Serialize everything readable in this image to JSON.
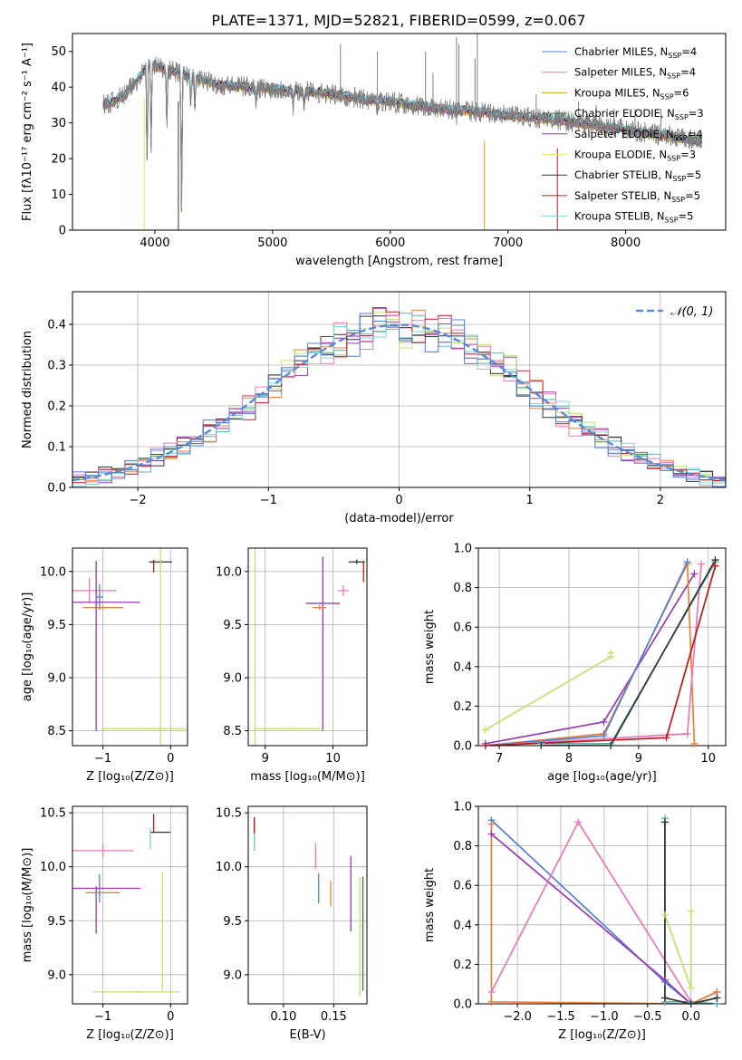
{
  "figure": {
    "title": "PLATE=1371, MJD=52821, FIBERID=0599, z=0.067"
  },
  "colors": {
    "chabrier_miles": "#4f7fd6",
    "salpeter_miles": "#e879b8",
    "kroupa_miles": "#d4a21a",
    "chabrier_elodie": "#3f6e3f",
    "salpeter_elodie": "#8a2bb8",
    "kroupa_elodie": "#e8e86a",
    "chabrier_stelib": "#333333",
    "salpeter_stelib": "#c01818",
    "kroupa_stelib": "#7dd3df",
    "obs": "#808080",
    "normal": "#5a8ad8",
    "orange": "#e9813a",
    "lime": "#bde36e",
    "purple": "#9a3ab0",
    "teal": "#59b0b5"
  },
  "chart_data": [
    {
      "id": "spectrum",
      "type": "line",
      "title": "PLATE=1371, MJD=52821, FIBERID=0599, z=0.067",
      "xlabel": "wavelength [Angstrom, rest frame]",
      "ylabel": "Flux [fλ10⁻¹⁷ erg cm⁻² s⁻¹ A⁻¹]",
      "xlim": [
        3300,
        8850
      ],
      "ylim": [
        0,
        55
      ],
      "xticks": [
        4000,
        5000,
        6000,
        7000,
        8000
      ],
      "yticks": [
        0,
        10,
        20,
        30,
        40,
        50
      ],
      "legend_position": "top-right",
      "legend": [
        {
          "label": "Chabrier MILES, N",
          "sub": "SSP",
          "tail": "=4",
          "color": "chabrier_miles"
        },
        {
          "label": "Salpeter MILES, N",
          "sub": "SSP",
          "tail": "=4",
          "color": "salpeter_miles"
        },
        {
          "label": "Kroupa MILES, N",
          "sub": "SSP",
          "tail": "=6",
          "color": "kroupa_miles"
        },
        {
          "label": "Chabrier ELODIE, N",
          "sub": "SSP",
          "tail": "=3",
          "color": "chabrier_elodie"
        },
        {
          "label": "Salpeter ELODIE, N",
          "sub": "SSP",
          "tail": "=4",
          "color": "salpeter_elodie"
        },
        {
          "label": "Kroupa ELODIE, N",
          "sub": "SSP",
          "tail": "=3",
          "color": "kroupa_elodie"
        },
        {
          "label": "Chabrier STELIB, N",
          "sub": "SSP",
          "tail": "=5",
          "color": "chabrier_stelib"
        },
        {
          "label": "Salpeter STELIB, N",
          "sub": "SSP",
          "tail": "=5",
          "color": "salpeter_stelib"
        },
        {
          "label": "Kroupa STELIB, N",
          "sub": "SSP",
          "tail": "=5",
          "color": "kroupa_stelib"
        }
      ],
      "continuum_x": [
        3560,
        3650,
        3750,
        3850,
        3950,
        4000,
        4100,
        4200,
        4300,
        4400,
        4500,
        4600,
        4800,
        5000,
        5200,
        5400,
        5600,
        5800,
        6000,
        6200,
        6400,
        6600,
        6800,
        7000,
        7200,
        7400,
        7600,
        7800,
        8000,
        8200,
        8400,
        8600
      ],
      "continuum_y": [
        35,
        36,
        38,
        42,
        47,
        46,
        45,
        44,
        43,
        42,
        41,
        40.5,
        40,
        39.5,
        39,
        38.5,
        37.5,
        36.5,
        36,
        35,
        34,
        33.5,
        33,
        32,
        31.5,
        31,
        30,
        29,
        28,
        27,
        26,
        25
      ],
      "absorption_lines": [
        [
          3934,
          18
        ],
        [
          3968,
          22
        ],
        [
          4102,
          30
        ],
        [
          4227,
          5
        ],
        [
          4305,
          36
        ],
        [
          4340,
          34
        ],
        [
          4861,
          36
        ],
        [
          5175,
          34
        ],
        [
          5269,
          35
        ],
        [
          5890,
          33
        ],
        [
          6563,
          32
        ]
      ],
      "emission_spikes": [
        [
          5577,
          52
        ],
        [
          5890,
          50
        ],
        [
          6300,
          50
        ],
        [
          6363,
          44
        ],
        [
          6563,
          54
        ],
        [
          6583,
          52
        ],
        [
          6720,
          48
        ],
        [
          6740,
          55
        ],
        [
          7240,
          38
        ],
        [
          7600,
          36
        ],
        [
          7750,
          35
        ],
        [
          7900,
          34
        ],
        [
          8080,
          34
        ],
        [
          8300,
          34
        ]
      ]
    },
    {
      "id": "residuals",
      "type": "line",
      "xlabel": "(data-model)/error",
      "ylabel": "Normed distribution",
      "xlim": [
        -2.5,
        2.5
      ],
      "ylim": [
        0,
        0.48
      ],
      "xticks": [
        -2,
        -1,
        0,
        1,
        2
      ],
      "yticks": [
        0.0,
        0.1,
        0.2,
        0.3,
        0.4
      ],
      "grid": true,
      "legend_position": "top-right",
      "legend": [
        {
          "label": "𝒩(0, 1)",
          "color": "normal",
          "style": "dashed"
        }
      ],
      "bin_width": 0.1,
      "series_colors": [
        "orange",
        "purple",
        "lime",
        "teal",
        "salpeter_stelib",
        "chabrier_stelib",
        "salpeter_miles",
        "kroupa_stelib",
        "chabrier_miles"
      ]
    },
    {
      "id": "age_vs_z",
      "type": "scatter",
      "xlabel": "Z [log₁₀(Z/Z⊙)]",
      "ylabel": "age  [log₁₀(age/yr)]",
      "xlim": [
        -1.45,
        0.25
      ],
      "ylim": [
        8.36,
        10.22
      ],
      "xticks": [
        -1,
        0
      ],
      "yticks": [
        8.5,
        9.0,
        9.5,
        10.0
      ],
      "grid": true,
      "points": [
        {
          "x": -1.2,
          "y": 9.82,
          "ex": 0.4,
          "ey": 0.12,
          "color": "salpeter_miles"
        },
        {
          "x": -1.0,
          "y": 9.66,
          "ex": 0.3,
          "ey": 0.02,
          "color": "orange"
        },
        {
          "x": -1.05,
          "y": 9.76,
          "ex": 0.05,
          "ey": 0.12,
          "color": "chabrier_miles"
        },
        {
          "x": -1.0,
          "y": 9.71,
          "ex": 0.55,
          "ey": 0.0,
          "color": "purple"
        },
        {
          "x": -1.1,
          "y": 9.3,
          "ex": 0.0,
          "ey": 0.8,
          "color": "purple"
        },
        {
          "x": -0.15,
          "y": 10.09,
          "ex": 0.17,
          "ey": 0.02,
          "color": "chabrier_stelib"
        },
        {
          "x": -0.25,
          "y": 10.05,
          "ex": 0.0,
          "ey": 0.06,
          "color": "salpeter_stelib"
        },
        {
          "x": -0.15,
          "y": 9.45,
          "ex": 0.0,
          "ey": 1.1,
          "color": "lime"
        },
        {
          "x": -0.4,
          "y": 8.52,
          "ex": 0.62,
          "ey": 0.01,
          "color": "lime"
        }
      ]
    },
    {
      "id": "age_vs_mass",
      "type": "scatter",
      "xlabel": "mass [log₁₀(M/M⊙)]",
      "ylabel": "",
      "xlim": [
        8.75,
        10.5
      ],
      "ylim": [
        8.36,
        10.22
      ],
      "xticks": [
        9,
        10
      ],
      "yticks": [
        8.5,
        9.0,
        9.5,
        10.0
      ],
      "grid": true,
      "points": [
        {
          "x": 9.85,
          "y": 9.7,
          "ex": 0.25,
          "ey": 0.0,
          "color": "purple"
        },
        {
          "x": 9.85,
          "y": 9.32,
          "ex": 0.0,
          "ey": 0.82,
          "color": "purple"
        },
        {
          "x": 9.8,
          "y": 9.66,
          "ex": 0.1,
          "ey": 0.02,
          "color": "orange"
        },
        {
          "x": 10.15,
          "y": 9.82,
          "ex": 0.08,
          "ey": 0.05,
          "color": "salpeter_miles"
        },
        {
          "x": 10.35,
          "y": 10.09,
          "ex": 0.12,
          "ey": 0.02,
          "color": "chabrier_stelib"
        },
        {
          "x": 10.45,
          "y": 10.0,
          "ex": 0.0,
          "ey": 0.1,
          "color": "salpeter_stelib"
        },
        {
          "x": 8.85,
          "y": 9.45,
          "ex": 0.0,
          "ey": 1.1,
          "color": "lime"
        },
        {
          "x": 9.35,
          "y": 8.52,
          "ex": 0.5,
          "ey": 0.01,
          "color": "lime"
        }
      ]
    },
    {
      "id": "mass_weight_vs_age",
      "type": "line",
      "xlabel": "age  [log₁₀(age/yr)]",
      "ylabel": "mass weight",
      "xlim": [
        6.7,
        10.25
      ],
      "ylim": [
        0,
        1.0
      ],
      "xticks": [
        7,
        8,
        9,
        10
      ],
      "yticks": [
        0.0,
        0.2,
        0.4,
        0.6,
        0.8,
        1.0
      ],
      "grid": true,
      "series": [
        {
          "color": "lime",
          "x": [
            6.8,
            8.6,
            8.6
          ],
          "y": [
            0.08,
            0.45,
            0.47
          ]
        },
        {
          "color": "purple",
          "x": [
            6.8,
            8.5,
            9.8
          ],
          "y": [
            0.01,
            0.12,
            0.87
          ]
        },
        {
          "color": "orange",
          "x": [
            6.8,
            8.5,
            9.7,
            9.8
          ],
          "y": [
            0.0,
            0.06,
            0.92,
            0.01
          ]
        },
        {
          "color": "chabrier_miles",
          "x": [
            6.8,
            8.5,
            9.7
          ],
          "y": [
            0.0,
            0.05,
            0.93
          ]
        },
        {
          "color": "salpeter_miles",
          "x": [
            6.8,
            9.7,
            9.9
          ],
          "y": [
            0.0,
            0.06,
            0.92
          ]
        },
        {
          "color": "teal",
          "x": [
            7.6,
            8.6,
            10.1
          ],
          "y": [
            0.01,
            0.01,
            0.93
          ]
        },
        {
          "color": "chabrier_stelib",
          "x": [
            7.6,
            8.6,
            10.1
          ],
          "y": [
            0.0,
            0.0,
            0.94
          ]
        },
        {
          "color": "salpeter_stelib",
          "x": [
            6.8,
            9.4,
            10.1
          ],
          "y": [
            0.0,
            0.04,
            0.91
          ]
        }
      ]
    },
    {
      "id": "mass_vs_z",
      "type": "scatter",
      "xlabel": "Z [log₁₀(Z/Z⊙)]",
      "ylabel": "mass [log₁₀(M/M⊙)]",
      "xlim": [
        -1.45,
        0.25
      ],
      "ylim": [
        8.73,
        10.56
      ],
      "xticks": [
        -1,
        0
      ],
      "yticks": [
        9.0,
        9.5,
        10.0,
        10.5
      ],
      "grid": true,
      "points": [
        {
          "x": -1.0,
          "y": 10.15,
          "ex": 0.45,
          "ey": 0.06,
          "color": "salpeter_miles"
        },
        {
          "x": -1.0,
          "y": 9.8,
          "ex": 0.55,
          "ey": 0.0,
          "color": "purple"
        },
        {
          "x": -1.1,
          "y": 9.6,
          "ex": 0.0,
          "ey": 0.22,
          "color": "purple"
        },
        {
          "x": -1.0,
          "y": 9.76,
          "ex": 0.25,
          "ey": 0.0,
          "color": "orange"
        },
        {
          "x": -1.05,
          "y": 9.8,
          "ex": 0.0,
          "ey": 0.13,
          "color": "chabrier_miles"
        },
        {
          "x": -0.15,
          "y": 10.32,
          "ex": 0.15,
          "ey": 0.0,
          "color": "chabrier_stelib"
        },
        {
          "x": -0.25,
          "y": 10.4,
          "ex": 0.0,
          "ey": 0.09,
          "color": "salpeter_stelib"
        },
        {
          "x": -0.3,
          "y": 10.26,
          "ex": 0.0,
          "ey": 0.1,
          "color": "kroupa_stelib"
        },
        {
          "x": -0.12,
          "y": 9.4,
          "ex": 0.0,
          "ey": 0.55,
          "color": "lime"
        },
        {
          "x": -0.5,
          "y": 8.84,
          "ex": 0.65,
          "ey": 0.01,
          "color": "lime"
        }
      ]
    },
    {
      "id": "mass_vs_ebv",
      "type": "scatter",
      "xlabel": "E(B-V)",
      "ylabel": "",
      "xlim": [
        0.065,
        0.183
      ],
      "ylim": [
        8.73,
        10.56
      ],
      "xticks": [
        0.1,
        0.15
      ],
      "tick_labels": [
        "0.10",
        "0.15"
      ],
      "yticks": [
        9.0,
        9.5,
        10.0,
        10.5
      ],
      "grid": true,
      "points": [
        {
          "x": 0.071,
          "y": 10.3,
          "ex": 0.0,
          "ey": 0.15,
          "color": "chabrier_stelib"
        },
        {
          "x": 0.071,
          "y": 10.38,
          "ex": 0.0,
          "ey": 0.08,
          "color": "salpeter_stelib"
        },
        {
          "x": 0.071,
          "y": 10.23,
          "ex": 0.0,
          "ey": 0.08,
          "color": "kroupa_stelib"
        },
        {
          "x": 0.132,
          "y": 10.1,
          "ex": 0.0,
          "ey": 0.12,
          "color": "salpeter_miles"
        },
        {
          "x": 0.135,
          "y": 9.8,
          "ex": 0.0,
          "ey": 0.14,
          "color": "chabrier_miles"
        },
        {
          "x": 0.147,
          "y": 9.75,
          "ex": 0.0,
          "ey": 0.12,
          "color": "orange"
        },
        {
          "x": 0.167,
          "y": 9.75,
          "ex": 0.0,
          "ey": 0.35,
          "color": "purple"
        },
        {
          "x": 0.176,
          "y": 9.35,
          "ex": 0.0,
          "ey": 0.55,
          "color": "lime"
        },
        {
          "x": 0.179,
          "y": 9.38,
          "ex": 0.0,
          "ey": 0.53,
          "color": "chabrier_elodie"
        }
      ]
    },
    {
      "id": "mass_weight_vs_z",
      "type": "line",
      "xlabel": "Z [log₁₀(Z/Z⊙)]",
      "ylabel": "mass weight",
      "xlim": [
        -2.45,
        0.4
      ],
      "ylim": [
        0,
        1.0
      ],
      "xticks": [
        -2.0,
        -1.5,
        -1.0,
        -0.5,
        0.0
      ],
      "tick_labels": [
        "−2.0",
        "−1.5",
        "−1.0",
        "−0.5",
        "0.0"
      ],
      "yticks": [
        0.0,
        0.2,
        0.4,
        0.6,
        0.8,
        1.0
      ],
      "grid": true,
      "series": [
        {
          "color": "chabrier_miles",
          "x": [
            -2.3,
            -0.3,
            0.0,
            0.3
          ],
          "y": [
            0.93,
            0.11,
            0.0,
            0.0
          ]
        },
        {
          "color": "purple",
          "x": [
            -2.3,
            -0.3,
            0.0,
            0.3
          ],
          "y": [
            0.86,
            0.12,
            0.0,
            0.06
          ]
        },
        {
          "color": "salpeter_miles",
          "x": [
            -2.3,
            -1.3,
            0.0,
            0.3
          ],
          "y": [
            0.06,
            0.92,
            0.01,
            0.0
          ]
        },
        {
          "color": "orange",
          "x": [
            -2.3,
            -2.3,
            0.0,
            0.3
          ],
          "y": [
            0.91,
            0.01,
            0.0,
            0.06
          ]
        },
        {
          "color": "lime",
          "x": [
            -0.3,
            0.0,
            0.0
          ],
          "y": [
            0.45,
            0.08,
            0.47
          ]
        },
        {
          "color": "teal",
          "x": [
            -0.3,
            -0.3,
            0.0,
            0.3
          ],
          "y": [
            0.94,
            0.01,
            0.01,
            0.0
          ]
        },
        {
          "color": "chabrier_stelib",
          "x": [
            -0.3,
            -0.3,
            0.0,
            0.3
          ],
          "y": [
            0.92,
            0.03,
            0.0,
            0.03
          ]
        }
      ]
    }
  ]
}
